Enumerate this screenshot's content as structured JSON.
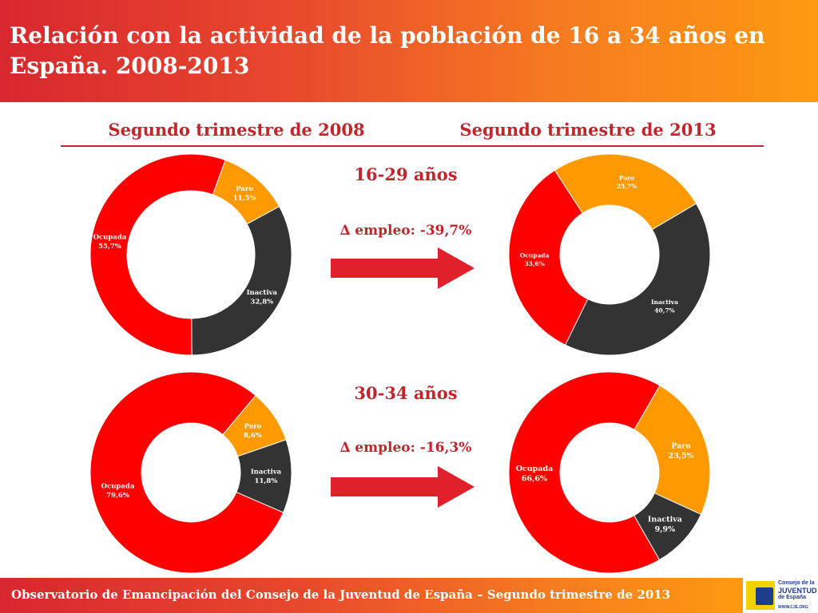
{
  "header": {
    "title": "Relación con la actividad de la población de 16 a 34 años en España. 2008-2013"
  },
  "columns": {
    "left": "Segundo trimestre de 2008",
    "right": "Segundo trimestre de 2013"
  },
  "groups": [
    {
      "age": "16-29 años",
      "delta": "∆ empleo: -39,7%"
    },
    {
      "age": "30-34 años",
      "delta": "∆ empleo: -16,3%"
    }
  ],
  "colors": {
    "ocupada": "#ff0000",
    "paro": "#fe9a00",
    "inactiva": "#333333",
    "accent": "#c0272d",
    "arrow": "#e0202a"
  },
  "chart_data": [
    {
      "type": "pie",
      "variant": "donut",
      "group": "16-29 años",
      "period": "Segundo trimestre de 2008",
      "slices": [
        {
          "name": "Paro",
          "value": 11.5,
          "label": "11,5%"
        },
        {
          "name": "Inactiva",
          "value": 32.8,
          "label": "32,8%"
        },
        {
          "name": "Ocupada",
          "value": 55.7,
          "label": "55,7%"
        }
      ]
    },
    {
      "type": "pie",
      "variant": "donut",
      "group": "16-29 años",
      "period": "Segundo trimestre de 2013",
      "slices": [
        {
          "name": "Paro",
          "value": 25.7,
          "label": "25,7%"
        },
        {
          "name": "Inactiva",
          "value": 40.7,
          "label": "40,7%"
        },
        {
          "name": "Ocupada",
          "value": 33.6,
          "label": "33,6%"
        }
      ]
    },
    {
      "type": "pie",
      "variant": "donut",
      "group": "30-34 años",
      "period": "Segundo trimestre de 2008",
      "slices": [
        {
          "name": "Paro",
          "value": 8.6,
          "label": "8,6%"
        },
        {
          "name": "Inactiva",
          "value": 11.8,
          "label": "11,8%"
        },
        {
          "name": "Ocupada",
          "value": 79.6,
          "label": "79,6%"
        }
      ]
    },
    {
      "type": "pie",
      "variant": "donut",
      "group": "30-34 años",
      "period": "Segundo trimestre de 2013",
      "slices": [
        {
          "name": "Paro",
          "value": 23.5,
          "label": "23,5%"
        },
        {
          "name": "Inactiva",
          "value": 9.9,
          "label": "9,9%"
        },
        {
          "name": "Ocupada",
          "value": 66.6,
          "label": "66,6%"
        }
      ]
    }
  ],
  "footer": {
    "text": "Observatorio de Emancipación del Consejo de la Juventud de España – Segundo trimestre de 2013",
    "logo": {
      "line1": "Consejo de la",
      "line2": "JUVENTUD",
      "line3": "de España",
      "url": "WWW.CJE.ORG",
      "icon": "cje-logo-icon"
    }
  }
}
